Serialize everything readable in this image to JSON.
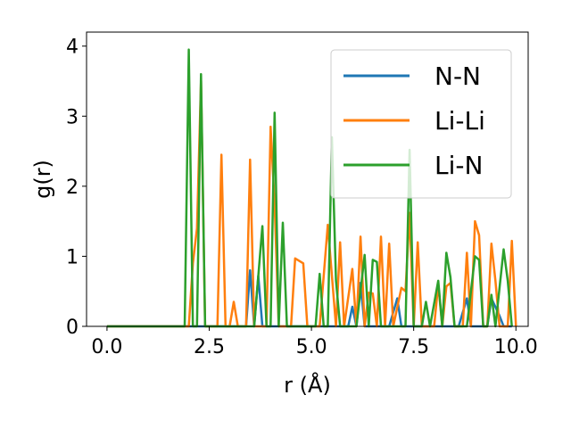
{
  "chart_data": {
    "type": "line",
    "title": "",
    "xlabel": "r (Å)",
    "ylabel": "g(r)",
    "xlim": [
      -0.5,
      10.3
    ],
    "ylim": [
      0,
      4.2
    ],
    "xticks": [
      0.0,
      2.5,
      5.0,
      7.5,
      10.0
    ],
    "xtick_labels": [
      "0.0",
      "2.5",
      "5.0",
      "7.5",
      "10.0"
    ],
    "yticks": [
      0,
      1,
      2,
      3,
      4
    ],
    "ytick_labels": [
      "0",
      "1",
      "2",
      "3",
      "4"
    ],
    "grid": false,
    "legend_position": "top-right",
    "series": [
      {
        "name": "N-N",
        "color": "#1f77b4",
        "points": [
          [
            0.0,
            0
          ],
          [
            3.4,
            0
          ],
          [
            3.5,
            0.8
          ],
          [
            3.6,
            0
          ],
          [
            3.7,
            0.72
          ],
          [
            3.8,
            0
          ],
          [
            5.9,
            0
          ],
          [
            6.0,
            0.28
          ],
          [
            6.1,
            0
          ],
          [
            6.2,
            0.62
          ],
          [
            6.3,
            0
          ],
          [
            6.9,
            0
          ],
          [
            7.1,
            0.4
          ],
          [
            7.2,
            0
          ],
          [
            8.6,
            0
          ],
          [
            8.8,
            0.4
          ],
          [
            8.9,
            0
          ],
          [
            9.3,
            0
          ],
          [
            9.4,
            0.4
          ],
          [
            9.6,
            0.15
          ],
          [
            9.7,
            0
          ],
          [
            9.9,
            0
          ]
        ]
      },
      {
        "name": "Li-Li",
        "color": "#ff7f0e",
        "points": [
          [
            0.0,
            0
          ],
          [
            2.0,
            0
          ],
          [
            2.1,
            0.9
          ],
          [
            2.2,
            1.4
          ],
          [
            2.3,
            3.5
          ],
          [
            2.4,
            0
          ],
          [
            2.7,
            0
          ],
          [
            2.8,
            2.45
          ],
          [
            2.9,
            0
          ],
          [
            3.0,
            0
          ],
          [
            3.1,
            0.35
          ],
          [
            3.2,
            0
          ],
          [
            3.4,
            0
          ],
          [
            3.5,
            2.38
          ],
          [
            3.6,
            0
          ],
          [
            3.9,
            0
          ],
          [
            4.0,
            2.85
          ],
          [
            4.1,
            1.75
          ],
          [
            4.2,
            0
          ],
          [
            4.5,
            0
          ],
          [
            4.6,
            0.97
          ],
          [
            4.8,
            0.9
          ],
          [
            4.9,
            0
          ],
          [
            5.2,
            0
          ],
          [
            5.4,
            1.45
          ],
          [
            5.6,
            0
          ],
          [
            5.7,
            1.2
          ],
          [
            5.8,
            0
          ],
          [
            6.0,
            0.82
          ],
          [
            6.1,
            0
          ],
          [
            6.2,
            1.28
          ],
          [
            6.3,
            0
          ],
          [
            6.4,
            0.48
          ],
          [
            6.5,
            0.47
          ],
          [
            6.6,
            0
          ],
          [
            6.7,
            1.28
          ],
          [
            6.8,
            0
          ],
          [
            6.9,
            1.18
          ],
          [
            7.0,
            0
          ],
          [
            7.2,
            0.55
          ],
          [
            7.3,
            0.5
          ],
          [
            7.4,
            1.62
          ],
          [
            7.5,
            0
          ],
          [
            7.6,
            1.2
          ],
          [
            7.7,
            0
          ],
          [
            8.0,
            0
          ],
          [
            8.1,
            0.6
          ],
          [
            8.2,
            0
          ],
          [
            8.3,
            0.57
          ],
          [
            8.4,
            0.62
          ],
          [
            8.5,
            0
          ],
          [
            8.7,
            0
          ],
          [
            8.8,
            1.05
          ],
          [
            8.9,
            0
          ],
          [
            9.0,
            1.5
          ],
          [
            9.1,
            1.3
          ],
          [
            9.2,
            0
          ],
          [
            9.3,
            0
          ],
          [
            9.4,
            1.18
          ],
          [
            9.5,
            0.65
          ],
          [
            9.6,
            0
          ],
          [
            9.8,
            0
          ],
          [
            9.9,
            1.22
          ],
          [
            10.0,
            0
          ]
        ]
      },
      {
        "name": "Li-N",
        "color": "#2ca02c",
        "points": [
          [
            0.0,
            0
          ],
          [
            1.9,
            0
          ],
          [
            2.0,
            3.95
          ],
          [
            2.1,
            0
          ],
          [
            2.2,
            0
          ],
          [
            2.3,
            3.6
          ],
          [
            2.4,
            0
          ],
          [
            3.6,
            0
          ],
          [
            3.8,
            1.43
          ],
          [
            3.9,
            0
          ],
          [
            4.0,
            0
          ],
          [
            4.1,
            3.05
          ],
          [
            4.2,
            0
          ],
          [
            4.3,
            1.48
          ],
          [
            4.4,
            0
          ],
          [
            5.1,
            0
          ],
          [
            5.2,
            0.75
          ],
          [
            5.3,
            0
          ],
          [
            5.4,
            0
          ],
          [
            5.5,
            2.7
          ],
          [
            5.6,
            0.65
          ],
          [
            5.7,
            0
          ],
          [
            6.1,
            0
          ],
          [
            6.3,
            1.02
          ],
          [
            6.4,
            0
          ],
          [
            6.5,
            0.95
          ],
          [
            6.6,
            0.92
          ],
          [
            6.7,
            0
          ],
          [
            7.3,
            0
          ],
          [
            7.4,
            2.52
          ],
          [
            7.5,
            0
          ],
          [
            7.7,
            0
          ],
          [
            7.8,
            0.35
          ],
          [
            7.9,
            0
          ],
          [
            8.1,
            0.65
          ],
          [
            8.2,
            0
          ],
          [
            8.3,
            1.05
          ],
          [
            8.4,
            0.7
          ],
          [
            8.5,
            0
          ],
          [
            8.8,
            0
          ],
          [
            9.0,
            1.0
          ],
          [
            9.1,
            0.95
          ],
          [
            9.2,
            0
          ],
          [
            9.3,
            0
          ],
          [
            9.4,
            0.45
          ],
          [
            9.5,
            0
          ],
          [
            9.7,
            1.1
          ],
          [
            9.8,
            0.65
          ],
          [
            9.9,
            0
          ]
        ]
      }
    ]
  }
}
